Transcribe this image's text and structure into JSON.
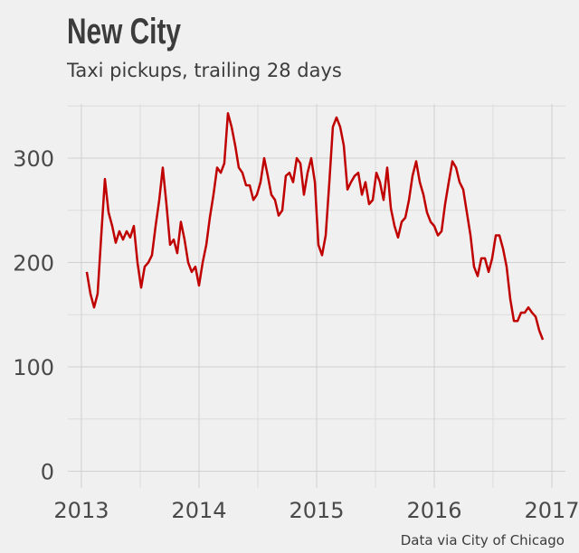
{
  "chart_data": {
    "type": "line",
    "title": "New City",
    "subtitle": "Taxi pickups, trailing 28 days",
    "source": "Data via City of Chicago",
    "x": [
      2013.046,
      2013.077,
      2013.108,
      2013.138,
      2013.169,
      2013.2,
      2013.231,
      2013.262,
      2013.292,
      2013.323,
      2013.354,
      2013.385,
      2013.415,
      2013.446,
      2013.477,
      2013.508,
      2013.538,
      2013.569,
      2013.6,
      2013.631,
      2013.662,
      2013.692,
      2013.723,
      2013.754,
      2013.785,
      2013.815,
      2013.846,
      2013.877,
      2013.908,
      2013.938,
      2013.969,
      2014.0,
      2014.031,
      2014.062,
      2014.092,
      2014.123,
      2014.154,
      2014.185,
      2014.215,
      2014.246,
      2014.277,
      2014.308,
      2014.338,
      2014.369,
      2014.4,
      2014.431,
      2014.462,
      2014.492,
      2014.523,
      2014.554,
      2014.585,
      2014.615,
      2014.646,
      2014.677,
      2014.708,
      2014.738,
      2014.769,
      2014.8,
      2014.831,
      2014.862,
      2014.892,
      2014.923,
      2014.954,
      2014.985,
      2015.015,
      2015.046,
      2015.077,
      2015.108,
      2015.138,
      2015.169,
      2015.2,
      2015.231,
      2015.262,
      2015.292,
      2015.323,
      2015.354,
      2015.385,
      2015.415,
      2015.446,
      2015.477,
      2015.508,
      2015.538,
      2015.569,
      2015.6,
      2015.631,
      2015.662,
      2015.692,
      2015.723,
      2015.754,
      2015.785,
      2015.815,
      2015.846,
      2015.877,
      2015.908,
      2015.938,
      2015.969,
      2016.0,
      2016.031,
      2016.062,
      2016.092,
      2016.123,
      2016.154,
      2016.185,
      2016.215,
      2016.246,
      2016.277,
      2016.308,
      2016.338,
      2016.369,
      2016.4,
      2016.431,
      2016.462,
      2016.492,
      2016.523,
      2016.554,
      2016.585,
      2016.615,
      2016.646,
      2016.677,
      2016.708,
      2016.738,
      2016.769,
      2016.8,
      2016.831,
      2016.862,
      2016.892,
      2016.923
    ],
    "series": [
      {
        "name": "Taxi pickups",
        "color": "#c00000",
        "values": [
          191,
          170,
          157,
          170,
          226,
          280,
          248,
          235,
          219,
          230,
          222,
          230,
          224,
          235,
          200,
          176,
          196,
          200,
          207,
          235,
          260,
          291,
          256,
          217,
          222,
          209,
          239,
          222,
          200,
          191,
          196,
          178,
          200,
          217,
          243,
          265,
          291,
          286,
          295,
          343,
          330,
          312,
          291,
          286,
          274,
          274,
          260,
          265,
          277,
          300,
          283,
          265,
          260,
          245,
          250,
          283,
          286,
          277,
          300,
          295,
          265,
          286,
          300,
          277,
          217,
          207,
          226,
          277,
          330,
          339,
          330,
          312,
          270,
          277,
          283,
          286,
          265,
          277,
          256,
          260,
          286,
          277,
          260,
          291,
          252,
          235,
          224,
          239,
          243,
          260,
          283,
          297,
          277,
          265,
          248,
          239,
          235,
          226,
          230,
          256,
          277,
          297,
          291,
          277,
          270,
          248,
          226,
          196,
          187,
          204,
          204,
          191,
          204,
          226,
          226,
          213,
          196,
          165,
          144,
          144,
          152,
          152,
          157,
          152,
          148,
          135,
          126
        ]
      }
    ],
    "xlim": [
      2012.885,
      2017.115
    ],
    "xticks": [
      2013,
      2014,
      2015,
      2016,
      2017
    ],
    "minor_xticks": [
      2013.5,
      2014.5,
      2015.5,
      2016.5
    ],
    "ylim": [
      -16,
      352
    ],
    "yticks": [
      0,
      100,
      200,
      300
    ],
    "minor_yticks": [
      50,
      150,
      250,
      350
    ],
    "grid": true
  }
}
